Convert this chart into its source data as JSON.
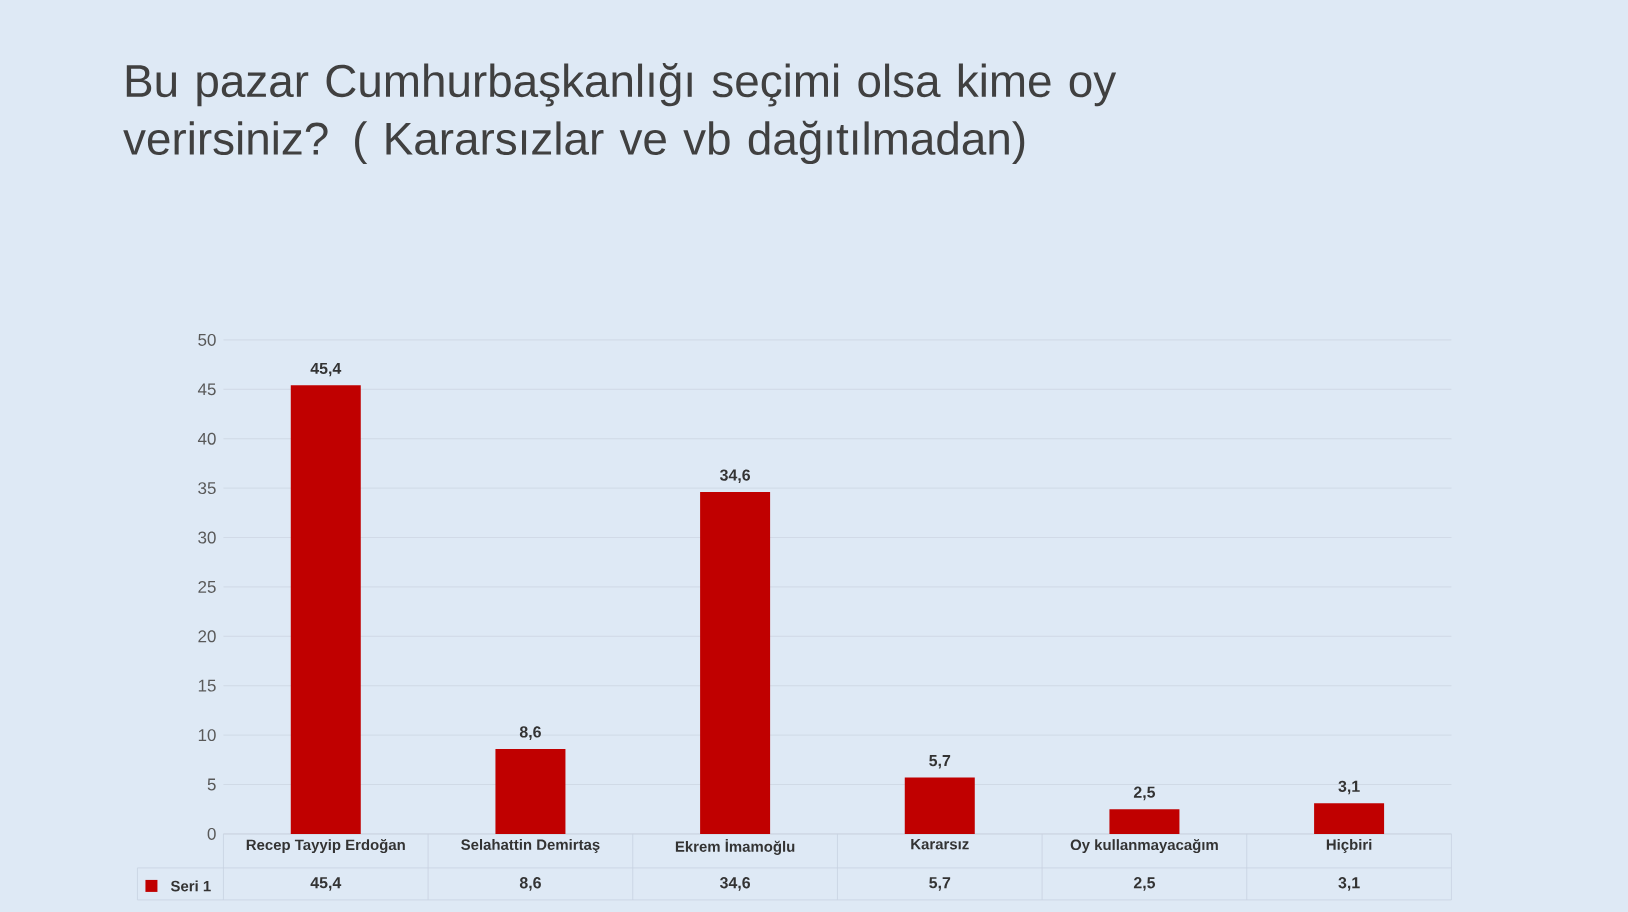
{
  "chart_data": {
    "type": "bar",
    "title": "Bu pazar Cumhurbaşkanlığı seçimi olsa kime oy verirsiniz? ( Kararsızlar ve vb dağıtılmadan)",
    "categories": [
      "Recep Tayyip Erdoğan",
      "Selahattin Demirtaş",
      "Ekrem İmamoğlu",
      "Kararsız",
      "Oy kullanmayacağım",
      "Hiçbiri"
    ],
    "series": [
      {
        "name": "Seri 1",
        "color": "#c00000",
        "values": [
          45.4,
          8.6,
          34.6,
          5.7,
          2.5,
          3.1
        ],
        "value_labels": [
          "45,4",
          "8,6",
          "34,6",
          "5,7",
          "2,5",
          "3,1"
        ]
      }
    ],
    "ylim": [
      0,
      50
    ],
    "yticks": [
      0,
      5,
      10,
      15,
      20,
      25,
      30,
      35,
      40,
      45,
      50
    ],
    "grid": "y"
  }
}
